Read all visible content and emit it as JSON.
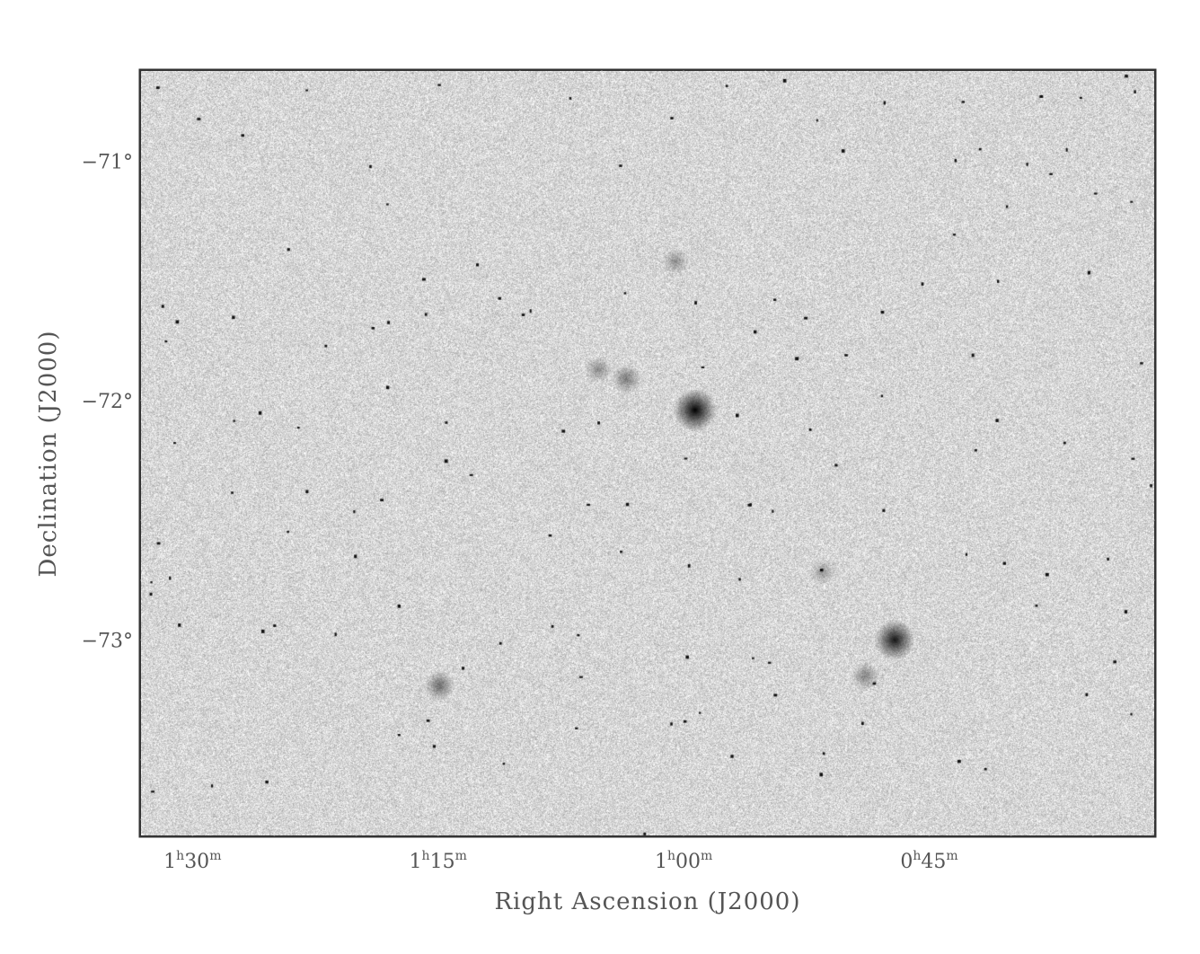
{
  "chart_data": {
    "type": "heatmap",
    "colormap": "grayscale (inverted, dark = bright emission)",
    "xlabel": "Right Ascension (J2000)",
    "ylabel": "Declination (J2000)",
    "x_ticks": [
      {
        "value_min": 90,
        "label_h": "1",
        "label_m": "30"
      },
      {
        "value_min": 75,
        "label_h": "1",
        "label_m": "15"
      },
      {
        "value_min": 60,
        "label_h": "1",
        "label_m": "00"
      },
      {
        "value_min": 45,
        "label_h": "0",
        "label_m": "45"
      }
    ],
    "y_ticks": [
      {
        "value": -71,
        "label": "−71°"
      },
      {
        "value": -72,
        "label": "−72°"
      },
      {
        "value": -73,
        "label": "−73°"
      }
    ],
    "xlim_ra_minutes": [
      93.2,
      31.2
    ],
    "ylim_dec_deg": [
      -73.82,
      -70.62
    ],
    "grid": false,
    "sources": [
      {
        "ra_min": 59.3,
        "dec": -72.04,
        "strength": 1.0
      },
      {
        "ra_min": 47.1,
        "dec": -73.0,
        "strength": 0.9
      },
      {
        "ra_min": 74.9,
        "dec": -73.19,
        "strength": 0.5
      },
      {
        "ra_min": 63.5,
        "dec": -71.91,
        "strength": 0.45
      },
      {
        "ra_min": 65.2,
        "dec": -71.87,
        "strength": 0.35
      },
      {
        "ra_min": 48.9,
        "dec": -73.15,
        "strength": 0.4
      },
      {
        "ra_min": 51.5,
        "dec": -72.72,
        "strength": 0.3
      },
      {
        "ra_min": 60.5,
        "dec": -71.42,
        "strength": 0.35
      }
    ]
  }
}
